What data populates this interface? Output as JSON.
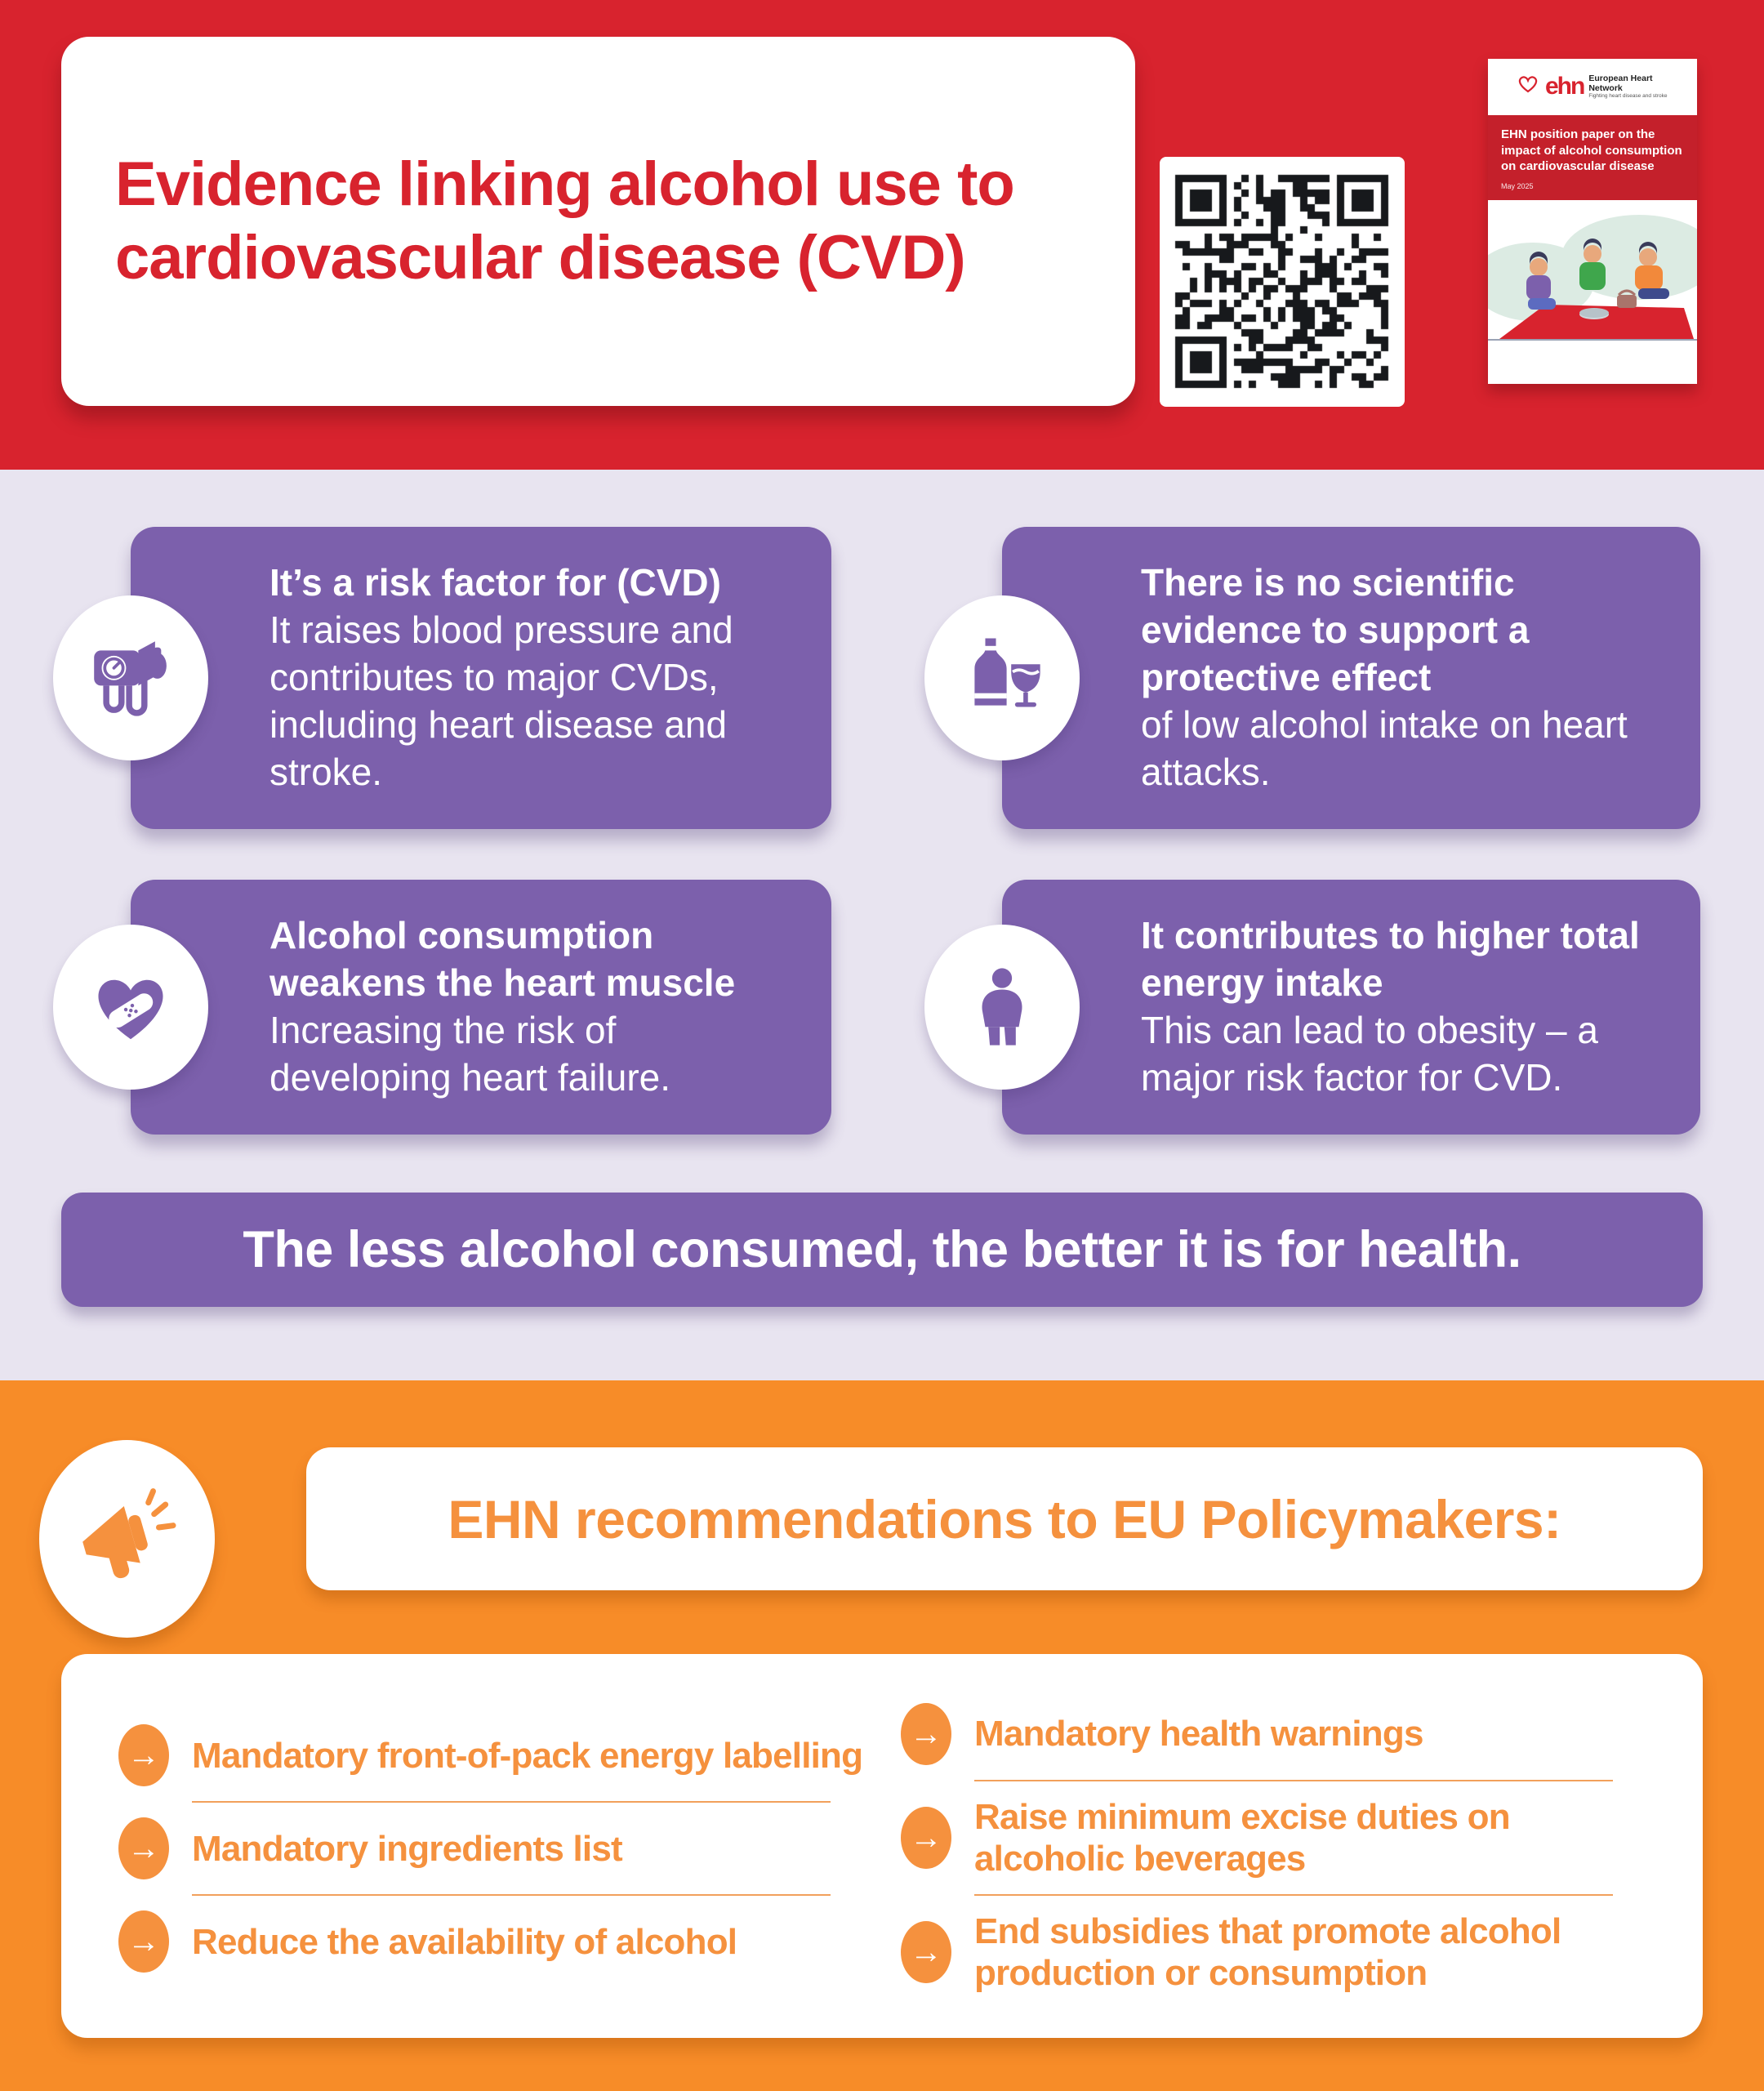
{
  "colors": {
    "header_red": "#D8232E",
    "card_purple": "#7C60AC",
    "lavender_bg": "#E8E4F0",
    "orange_bg": "#F78C28",
    "orange_text": "#F5913E",
    "white": "#FFFFFF"
  },
  "header": {
    "title": "Evidence linking alcohol use to cardiovascular disease (CVD)",
    "booklet": {
      "logo_text": "ehn",
      "org_name": "European Heart Network",
      "org_tagline": "Fighting heart disease and stroke",
      "cover_title": "EHN position paper on the impact of alcohol consumption on cardiovascular disease",
      "cover_date": "May 2025"
    }
  },
  "facts": [
    {
      "icon": "blood-pressure-monitor-icon",
      "heading": "It’s a risk factor for (CVD)",
      "body": "It raises blood pressure and contributes to major CVDs, including heart disease and stroke."
    },
    {
      "icon": "bottle-and-glass-icon",
      "heading": "There is no scientific evidence to support a protective effect",
      "body": "of low alcohol intake on heart attacks."
    },
    {
      "icon": "heart-bandage-icon",
      "heading": "Alcohol consumption weakens the heart muscle",
      "body": "Increasing the risk of developing heart failure."
    },
    {
      "icon": "person-obesity-icon",
      "heading": "It contributes to higher total energy intake",
      "body": "This can lead to obesity – a major risk factor for CVD."
    }
  ],
  "banner": {
    "text": "The less alcohol consumed, the better it is for health."
  },
  "recommendations": {
    "heading": "EHN recommendations to EU Policymakers:",
    "items_left": [
      "Mandatory front-of-pack energy labelling",
      "Mandatory ingredients list",
      "Reduce the availability of alcohol"
    ],
    "items_right": [
      "Mandatory health warnings",
      "Raise minimum excise duties on alcoholic beverages",
      "End subsidies that promote alcohol production or consumption"
    ]
  }
}
